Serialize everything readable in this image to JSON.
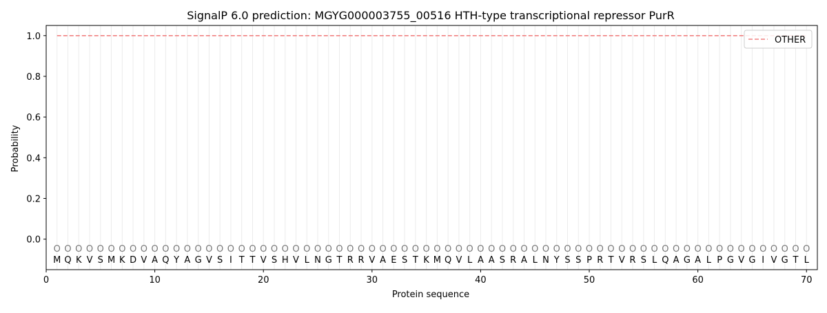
{
  "chart_data": {
    "type": "line",
    "title": "SignalP 6.0 prediction: MGYG000003755_00516 HTH-type transcriptional repressor PurR",
    "xlabel": "Protein sequence",
    "ylabel": "Probability",
    "xlim": [
      0,
      71
    ],
    "ylim": [
      -0.15,
      1.05
    ],
    "xticks": [
      0,
      10,
      20,
      30,
      40,
      50,
      60,
      70
    ],
    "yticks": [
      0.0,
      0.2,
      0.4,
      0.6,
      0.8,
      1.0
    ],
    "sequence": [
      "M",
      "Q",
      "K",
      "V",
      "S",
      "M",
      "K",
      "D",
      "V",
      "A",
      "Q",
      "Y",
      "A",
      "G",
      "V",
      "S",
      "I",
      "T",
      "T",
      "V",
      "S",
      "H",
      "V",
      "L",
      "N",
      "G",
      "T",
      "R",
      "R",
      "V",
      "A",
      "E",
      "S",
      "T",
      "K",
      "M",
      "Q",
      "V",
      "L",
      "A",
      "A",
      "S",
      "R",
      "A",
      "L",
      "N",
      "Y",
      "S",
      "S",
      "P",
      "R",
      "T",
      "V",
      "R",
      "S",
      "L",
      "Q",
      "A",
      "G",
      "A",
      "L",
      "P",
      "G",
      "V",
      "G",
      "I",
      "V",
      "G",
      "T",
      "L"
    ],
    "state_marker": "O",
    "marker_y": -0.045,
    "residue_label_y": -0.1,
    "series": [
      {
        "name": "OTHER",
        "x_start": 1,
        "x_end": 70,
        "value": 1.0,
        "style": "dashed",
        "color": "#f08080"
      }
    ],
    "legend": {
      "position": "top-right"
    },
    "grid": {
      "vertical_per_residue": true,
      "color": "#ebebeb"
    }
  }
}
